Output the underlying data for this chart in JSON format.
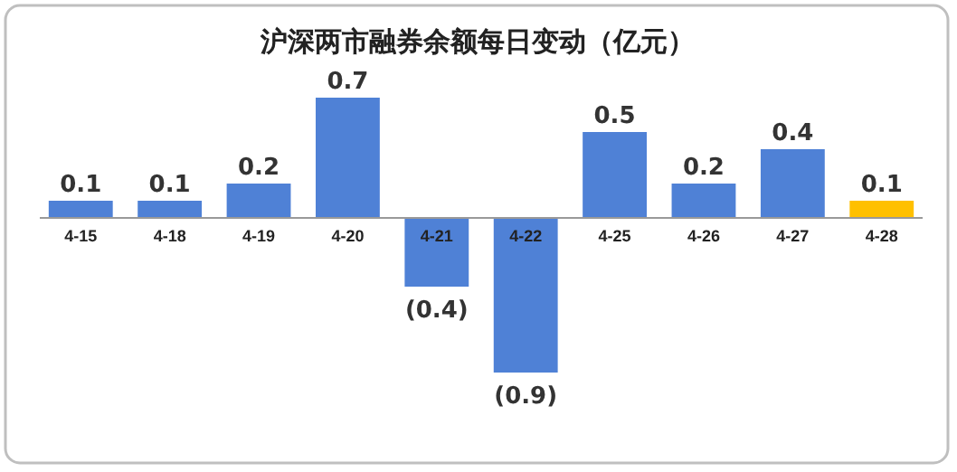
{
  "chart_data": {
    "type": "bar",
    "title": "沪深两市融券余额每日变动（亿元）",
    "categories": [
      "4-15",
      "4-18",
      "4-19",
      "4-20",
      "4-21",
      "4-22",
      "4-25",
      "4-26",
      "4-27",
      "4-28"
    ],
    "values": [
      0.1,
      0.1,
      0.2,
      0.7,
      -0.4,
      -0.9,
      0.5,
      0.2,
      0.4,
      0.1
    ],
    "colors": [
      "#4f81d6",
      "#4f81d6",
      "#4f81d6",
      "#4f81d6",
      "#4f81d6",
      "#4f81d6",
      "#4f81d6",
      "#4f81d6",
      "#4f81d6",
      "#ffc000"
    ],
    "value_labels": [
      "0.1",
      "0.1",
      "0.2",
      "0.7",
      "(0.4)",
      "(0.9)",
      "0.5",
      "0.2",
      "0.4",
      "0.1"
    ],
    "grid": false
  }
}
